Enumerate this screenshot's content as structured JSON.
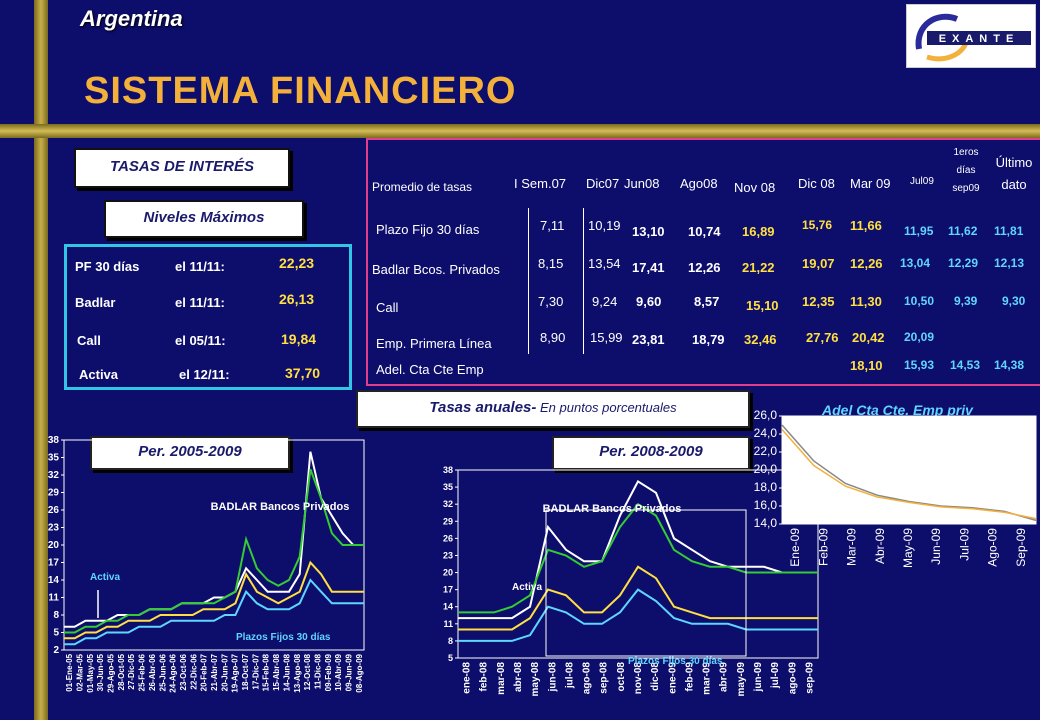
{
  "header": {
    "country": "Argentina",
    "title": "SISTEMA FINANCIERO"
  },
  "logo": {
    "text": "EXANTE"
  },
  "section": {
    "tasas": "TASAS DE INTERÉS",
    "niveles": "Niveles Máximos"
  },
  "maximos": [
    {
      "name": "PF 30 días",
      "date": "el 11/11:",
      "value": "22,23"
    },
    {
      "name": "Badlar",
      "date": "el 11/11:",
      "value": "26,13"
    },
    {
      "name": "Call",
      "date": "el 05/11:",
      "value": "19,84"
    },
    {
      "name": "Activa",
      "date": "el 12/11:",
      "value": "37,70"
    }
  ],
  "table": {
    "header_label": "Promedio de tasas",
    "columns": [
      "I Sem.07",
      "Dic07",
      "Jun08",
      "Ago08",
      "Nov 08",
      "Dic 08",
      "Mar 09",
      "Jul09",
      "1eros días sep09",
      "Último dato"
    ],
    "rows": [
      {
        "label": "Plazo Fijo 30 días",
        "values": [
          "7,11",
          "10,19",
          "13,10",
          "10,74",
          "16,89",
          "15,76",
          "11,66",
          "11,95",
          "11,62",
          "11,81"
        ]
      },
      {
        "label": "Badlar Bcos. Privados",
        "values": [
          "8,15",
          "13,54",
          "17,41",
          "12,26",
          "21,22",
          "19,07",
          "12,26",
          "13,04",
          "12,29",
          "12,13"
        ]
      },
      {
        "label": "Call",
        "values": [
          "7,30",
          "9,24",
          "9,60",
          "8,57",
          "15,10",
          "12,35",
          "11,30",
          "10,50",
          "9,39",
          "9,30"
        ]
      },
      {
        "label": "Emp. Primera Línea",
        "values": [
          "8,90",
          "15,99",
          "23,81",
          "18,79",
          "32,46",
          "27,76",
          "20,42",
          "20,09",
          "",
          ""
        ]
      },
      {
        "label": "Adel. Cta Cte Emp",
        "values": [
          "",
          "",
          "",
          "",
          "",
          "",
          "18,10",
          "15,93",
          "14,53",
          "14,38"
        ]
      }
    ]
  },
  "anual": {
    "main": "Tasas anuales-",
    "sub": " En puntos porcentuales"
  },
  "per1": "Per. 2005-2009",
  "per2": "Per. 2008-2009",
  "adel_title": "Adel Cta Cte. Emp priv",
  "colors": {
    "accent": "#f3b13c",
    "panel_border": "#31c6e6",
    "table_border": "#e23d8a",
    "yellow": "#ffe040",
    "cyan": "#5fd6ff",
    "navy": "#0d0d6b"
  },
  "chart_data": [
    {
      "id": "chart1",
      "type": "line",
      "title": "Per. 2005-2009",
      "yticks": [
        "38",
        "35",
        "32",
        "29",
        "26",
        "23",
        "20",
        "17",
        "14",
        "11",
        "8",
        "5",
        "2"
      ],
      "ylim": [
        2,
        38
      ],
      "xticks": [
        "01-Ene-05",
        "02-Mar-05",
        "01-May-05",
        "30-Jun-05",
        "29-Ago-05",
        "28-Oct-05",
        "27-Dic-05",
        "25-Feb-06",
        "26-Abr-06",
        "25-Jun-06",
        "24-Ago-06",
        "23-Oct-06",
        "22-Dic-06",
        "20-Feb-07",
        "21-Abr-07",
        "20-Jun-07",
        "19-Ago-07",
        "18-Oct-07",
        "17-Dic-07",
        "15-Feb-08",
        "15-Abr-08",
        "14-Jun-08",
        "13-Ago-08",
        "12-Oct-08",
        "11-Dic-08",
        "09-Feb-09",
        "10-Abr-09",
        "09-Jun-09",
        "08-Ago-09"
      ],
      "annotations": [
        "BADLAR Bancos Privados",
        "Activa",
        "Plazos Fijos 30 días"
      ],
      "series": [
        {
          "color": "#ffffff",
          "values": [
            6,
            6,
            7,
            7,
            7,
            8,
            8,
            8,
            9,
            9,
            9,
            10,
            10,
            10,
            11,
            11,
            12,
            16,
            14,
            12,
            12,
            12,
            15,
            36,
            28,
            25,
            22,
            20,
            20
          ]
        },
        {
          "color": "#33cc33",
          "values": [
            5,
            5,
            6,
            6,
            7,
            7,
            8,
            8,
            9,
            9,
            9,
            10,
            10,
            10,
            10,
            11,
            12,
            21,
            16,
            14,
            13,
            14,
            18,
            33,
            28,
            22,
            20,
            20,
            20
          ]
        },
        {
          "color": "#ffe040",
          "values": [
            4,
            4,
            5,
            5,
            6,
            6,
            7,
            7,
            7,
            8,
            8,
            8,
            8,
            9,
            9,
            9,
            10,
            15,
            12,
            11,
            10,
            11,
            12,
            17,
            15,
            12,
            12,
            12,
            12
          ]
        },
        {
          "color": "#5fd6ff",
          "values": [
            3,
            3,
            4,
            4,
            5,
            5,
            5,
            6,
            6,
            6,
            7,
            7,
            7,
            7,
            7,
            8,
            8,
            12,
            10,
            9,
            9,
            9,
            10,
            14,
            12,
            10,
            10,
            10,
            10
          ]
        }
      ]
    },
    {
      "id": "chart2",
      "type": "line",
      "title": "Per. 2008-2009",
      "yticks": [
        "38",
        "35",
        "32",
        "29",
        "26",
        "23",
        "20",
        "17",
        "14",
        "11",
        "8",
        "5"
      ],
      "ylim": [
        5,
        38
      ],
      "xticks": [
        "ene-08",
        "feb-08",
        "mar-08",
        "abr-08",
        "may-08",
        "jun-08",
        "jul-08",
        "ago-08",
        "sep-08",
        "oct-08",
        "nov-08",
        "dic-08",
        "ene-09",
        "feb-09",
        "mar-09",
        "abr-09",
        "may-09",
        "jun-09",
        "jul-09",
        "ago-09",
        "sep-09"
      ],
      "annotations": [
        "BADLAR Bancos Privados",
        "Activa",
        "Plazos Fijos 30 días"
      ],
      "series": [
        {
          "color": "#ffffff",
          "values": [
            12,
            12,
            12,
            12,
            14,
            28,
            24,
            22,
            22,
            30,
            36,
            34,
            26,
            24,
            22,
            21,
            21,
            21,
            20,
            20,
            20
          ]
        },
        {
          "color": "#33cc33",
          "values": [
            13,
            13,
            13,
            14,
            16,
            24,
            23,
            21,
            22,
            28,
            32,
            30,
            24,
            22,
            21,
            21,
            20,
            20,
            20,
            20,
            20
          ]
        },
        {
          "color": "#ffe040",
          "values": [
            10,
            10,
            10,
            10,
            12,
            17,
            16,
            13,
            13,
            16,
            21,
            19,
            14,
            13,
            12,
            12,
            12,
            12,
            12,
            12,
            12
          ]
        },
        {
          "color": "#5fd6ff",
          "values": [
            8,
            8,
            8,
            8,
            9,
            14,
            13,
            11,
            11,
            13,
            17,
            15,
            12,
            11,
            11,
            11,
            10,
            10,
            10,
            10,
            10
          ]
        }
      ]
    },
    {
      "id": "chart3",
      "type": "line",
      "title": "Adel Cta Cte. Emp priv",
      "yticks": [
        "26,0",
        "24,0",
        "22,0",
        "20,0",
        "18,0",
        "16,0",
        "14,0"
      ],
      "ylim": [
        14,
        26
      ],
      "xticks": [
        "Ene-09",
        "Feb-09",
        "Mar-09",
        "Abr-09",
        "May-09",
        "Jun-09",
        "Jul-09",
        "Ago-09",
        "Sep-09"
      ],
      "series": [
        {
          "color": "#888888",
          "values": [
            25,
            21,
            18.5,
            17.2,
            16.5,
            16,
            15.8,
            15.4,
            14.4
          ]
        },
        {
          "color": "#f3b13c",
          "values": [
            24.5,
            20.5,
            18.2,
            17,
            16.4,
            15.9,
            15.7,
            15.3,
            14.6
          ]
        }
      ]
    }
  ]
}
